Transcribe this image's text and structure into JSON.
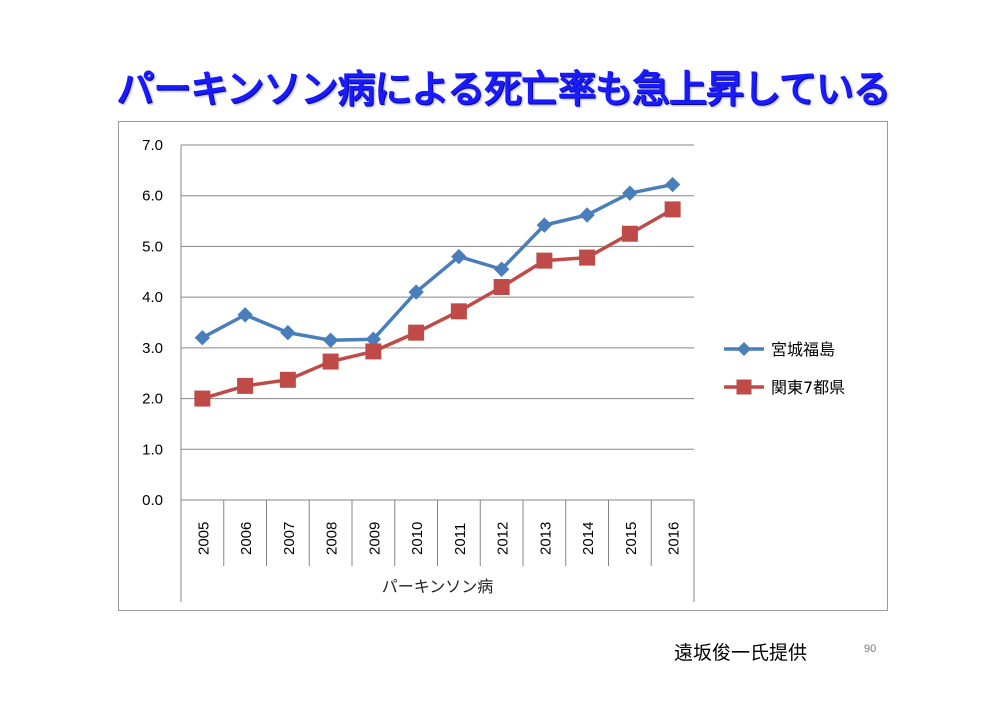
{
  "slide": {
    "title": "パーキンソン病による死亡率も急上昇している",
    "credit": "遠坂俊一氏提供",
    "page_number": "90"
  },
  "chart_data": {
    "type": "line",
    "categories": [
      "2005",
      "2006",
      "2007",
      "2008",
      "2009",
      "2010",
      "2011",
      "2012",
      "2013",
      "2014",
      "2015",
      "2016"
    ],
    "category_group_label": "パーキンソン病",
    "series": [
      {
        "name": "宮城福島",
        "color": "#4a7ebb",
        "marker": "diamond",
        "values": [
          3.2,
          3.65,
          3.3,
          3.15,
          3.17,
          4.1,
          4.8,
          4.55,
          5.42,
          5.62,
          6.05,
          6.22
        ]
      },
      {
        "name": "関東7都県",
        "color": "#be4b48",
        "marker": "square",
        "values": [
          2.0,
          2.25,
          2.37,
          2.73,
          2.93,
          3.3,
          3.72,
          4.2,
          4.72,
          4.78,
          5.25,
          5.73
        ]
      }
    ],
    "y_ticks": [
      "0.0",
      "1.0",
      "2.0",
      "3.0",
      "4.0",
      "5.0",
      "6.0",
      "7.0"
    ],
    "ylim": [
      0,
      7
    ],
    "gridlines": true,
    "legend_position": "right"
  }
}
